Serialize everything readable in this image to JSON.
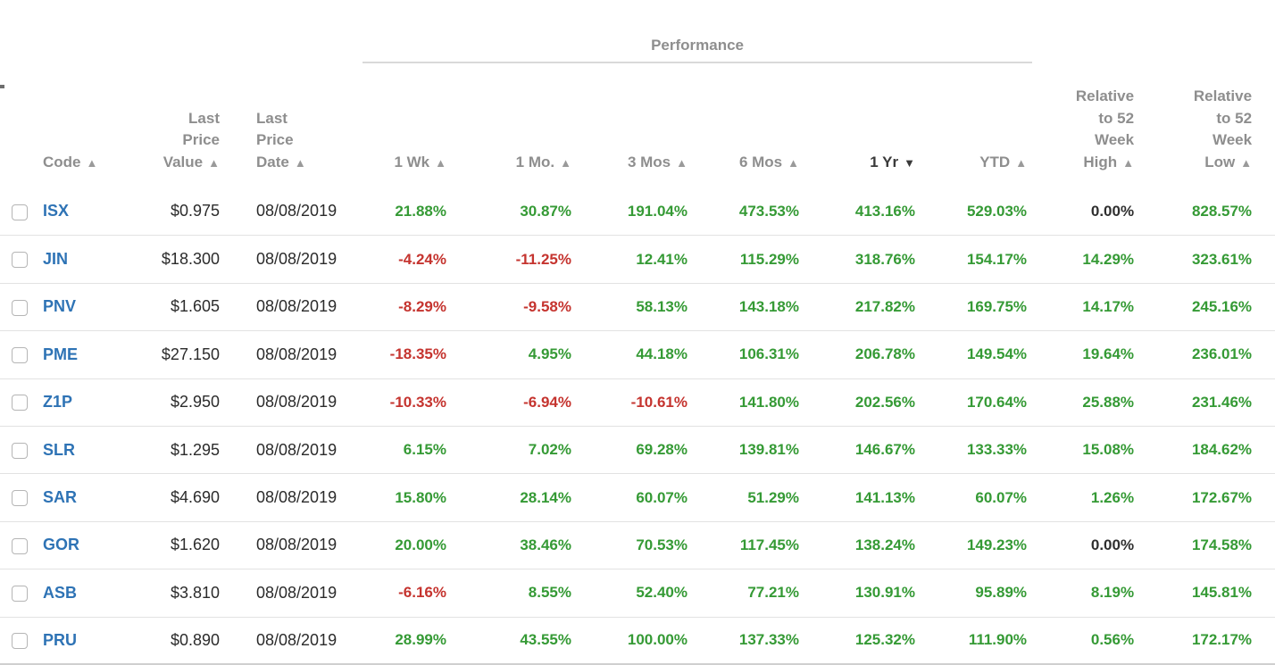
{
  "icons": {
    "sort_asc": "▲",
    "sort_desc": "▼"
  },
  "colors": {
    "positive": "#359a35",
    "negative": "#c5342f",
    "zero": "#2f2f2f",
    "code_link": "#2e73b5",
    "header_gray": "#8e8e8e",
    "active_header": "#3a3a3a"
  },
  "table": {
    "group_header": {
      "performance": "Performance"
    },
    "headers": {
      "code": "Code",
      "last_price_value": "Last\nPrice\nValue",
      "last_price_date": "Last\nPrice\nDate",
      "wk1": "1 Wk",
      "mo1": "1 Mo.",
      "mos3": "3 Mos",
      "mos6": "6 Mos",
      "yr1": "1 Yr",
      "ytd": "YTD",
      "rel_high": "Relative\nto 52\nWeek\nHigh",
      "rel_low": "Relative\nto 52\nWeek\nLow"
    },
    "sort": {
      "active_column": "1 Yr",
      "direction": "desc"
    },
    "rows": [
      {
        "code": "ISX",
        "last_price_value": "$0.975",
        "last_price_date": "08/08/2019",
        "wk1": "21.88%",
        "mo1": "30.87%",
        "mos3": "191.04%",
        "mos6": "473.53%",
        "yr1": "413.16%",
        "ytd": "529.03%",
        "rel_high": "0.00%",
        "rel_low": "828.57%"
      },
      {
        "code": "JIN",
        "last_price_value": "$18.300",
        "last_price_date": "08/08/2019",
        "wk1": "-4.24%",
        "mo1": "-11.25%",
        "mos3": "12.41%",
        "mos6": "115.29%",
        "yr1": "318.76%",
        "ytd": "154.17%",
        "rel_high": "14.29%",
        "rel_low": "323.61%"
      },
      {
        "code": "PNV",
        "last_price_value": "$1.605",
        "last_price_date": "08/08/2019",
        "wk1": "-8.29%",
        "mo1": "-9.58%",
        "mos3": "58.13%",
        "mos6": "143.18%",
        "yr1": "217.82%",
        "ytd": "169.75%",
        "rel_high": "14.17%",
        "rel_low": "245.16%"
      },
      {
        "code": "PME",
        "last_price_value": "$27.150",
        "last_price_date": "08/08/2019",
        "wk1": "-18.35%",
        "mo1": "4.95%",
        "mos3": "44.18%",
        "mos6": "106.31%",
        "yr1": "206.78%",
        "ytd": "149.54%",
        "rel_high": "19.64%",
        "rel_low": "236.01%"
      },
      {
        "code": "Z1P",
        "last_price_value": "$2.950",
        "last_price_date": "08/08/2019",
        "wk1": "-10.33%",
        "mo1": "-6.94%",
        "mos3": "-10.61%",
        "mos6": "141.80%",
        "yr1": "202.56%",
        "ytd": "170.64%",
        "rel_high": "25.88%",
        "rel_low": "231.46%"
      },
      {
        "code": "SLR",
        "last_price_value": "$1.295",
        "last_price_date": "08/08/2019",
        "wk1": "6.15%",
        "mo1": "7.02%",
        "mos3": "69.28%",
        "mos6": "139.81%",
        "yr1": "146.67%",
        "ytd": "133.33%",
        "rel_high": "15.08%",
        "rel_low": "184.62%"
      },
      {
        "code": "SAR",
        "last_price_value": "$4.690",
        "last_price_date": "08/08/2019",
        "wk1": "15.80%",
        "mo1": "28.14%",
        "mos3": "60.07%",
        "mos6": "51.29%",
        "yr1": "141.13%",
        "ytd": "60.07%",
        "rel_high": "1.26%",
        "rel_low": "172.67%"
      },
      {
        "code": "GOR",
        "last_price_value": "$1.620",
        "last_price_date": "08/08/2019",
        "wk1": "20.00%",
        "mo1": "38.46%",
        "mos3": "70.53%",
        "mos6": "117.45%",
        "yr1": "138.24%",
        "ytd": "149.23%",
        "rel_high": "0.00%",
        "rel_low": "174.58%"
      },
      {
        "code": "ASB",
        "last_price_value": "$3.810",
        "last_price_date": "08/08/2019",
        "wk1": "-6.16%",
        "mo1": "8.55%",
        "mos3": "52.40%",
        "mos6": "77.21%",
        "yr1": "130.91%",
        "ytd": "95.89%",
        "rel_high": "8.19%",
        "rel_low": "145.81%"
      },
      {
        "code": "PRU",
        "last_price_value": "$0.890",
        "last_price_date": "08/08/2019",
        "wk1": "28.99%",
        "mo1": "43.55%",
        "mos3": "100.00%",
        "mos6": "137.33%",
        "yr1": "125.32%",
        "ytd": "111.90%",
        "rel_high": "0.56%",
        "rel_low": "172.17%"
      }
    ]
  }
}
